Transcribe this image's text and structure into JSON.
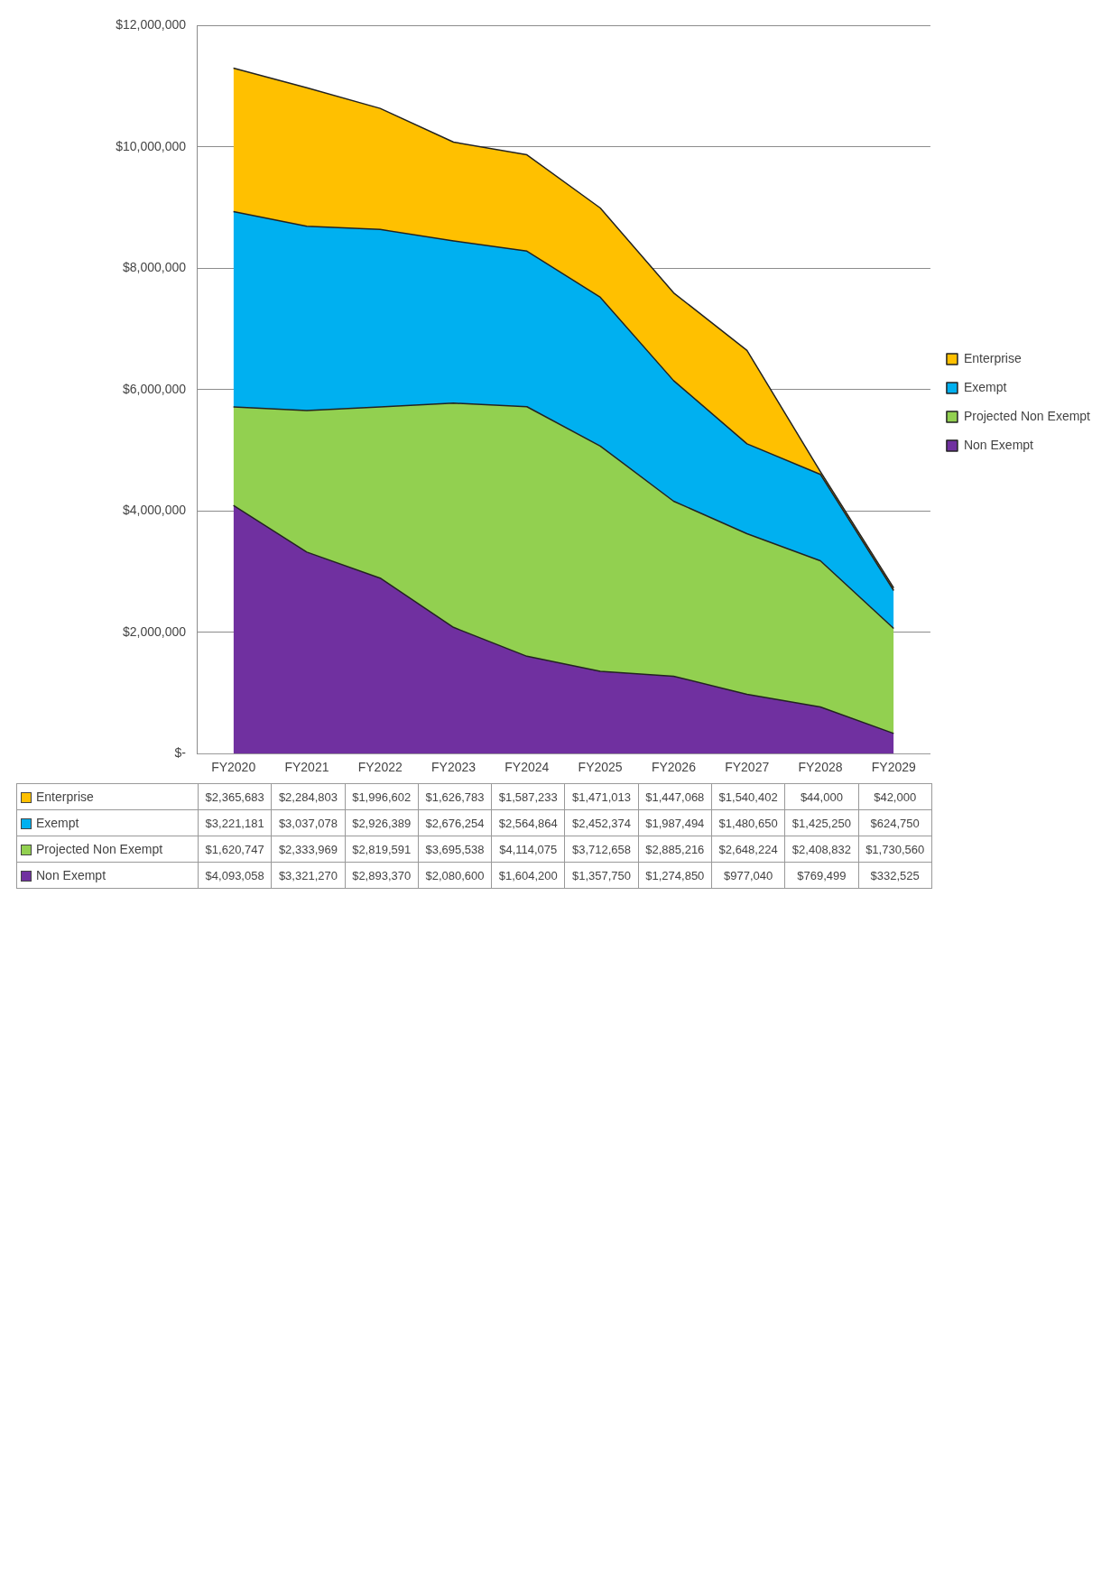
{
  "chart_data": {
    "type": "area",
    "stacked": true,
    "categories": [
      "FY2020",
      "FY2021",
      "FY2022",
      "FY2023",
      "FY2024",
      "FY2025",
      "FY2026",
      "FY2027",
      "FY2028",
      "FY2029"
    ],
    "series": [
      {
        "name": "Non Exempt",
        "color": "#7030a0",
        "values": [
          4093058,
          3321270,
          2893370,
          2080600,
          1604200,
          1357750,
          1274850,
          977040,
          769499,
          332525
        ],
        "value_labels": [
          "$4,093,058",
          "$3,321,270",
          "$2,893,370",
          "$2,080,600",
          "$1,604,200",
          "$1,357,750",
          "$1,274,850",
          "$977,040",
          "$769,499",
          "$332,525"
        ]
      },
      {
        "name": "Projected Non Exempt",
        "color": "#92d050",
        "values": [
          1620747,
          2333969,
          2819591,
          3695538,
          4114075,
          3712658,
          2885216,
          2648224,
          2408832,
          1730560
        ],
        "value_labels": [
          "$1,620,747",
          "$2,333,969",
          "$2,819,591",
          "$3,695,538",
          "$4,114,075",
          "$3,712,658",
          "$2,885,216",
          "$2,648,224",
          "$2,408,832",
          "$1,730,560"
        ]
      },
      {
        "name": "Exempt",
        "color": "#00b0f0",
        "values": [
          3221181,
          3037078,
          2926389,
          2676254,
          2564864,
          2452374,
          1987494,
          1480650,
          1425250,
          624750
        ],
        "value_labels": [
          "$3,221,181",
          "$3,037,078",
          "$2,926,389",
          "$2,676,254",
          "$2,564,864",
          "$2,452,374",
          "$1,987,494",
          "$1,480,650",
          "$1,425,250",
          "$624,750"
        ]
      },
      {
        "name": "Enterprise",
        "color": "#ffc000",
        "values": [
          2365683,
          2284803,
          1996602,
          1626783,
          1587233,
          1471013,
          1447068,
          1540402,
          44000,
          42000
        ],
        "value_labels": [
          "$2,365,683",
          "$2,284,803",
          "$1,996,602",
          "$1,626,783",
          "$1,587,233",
          "$1,471,013",
          "$1,447,068",
          "$1,540,402",
          "$44,000",
          "$42,000"
        ]
      }
    ],
    "ylim": [
      0,
      12000000
    ],
    "yticks": [
      {
        "value": 0,
        "label": "$-"
      },
      {
        "value": 2000000,
        "label": "$2,000,000"
      },
      {
        "value": 4000000,
        "label": "$4,000,000"
      },
      {
        "value": 6000000,
        "label": "$6,000,000"
      },
      {
        "value": 8000000,
        "label": "$8,000,000"
      },
      {
        "value": 10000000,
        "label": "$10,000,000"
      },
      {
        "value": 12000000,
        "label": "$12,000,000"
      }
    ],
    "grid": "y",
    "legend": "right"
  }
}
